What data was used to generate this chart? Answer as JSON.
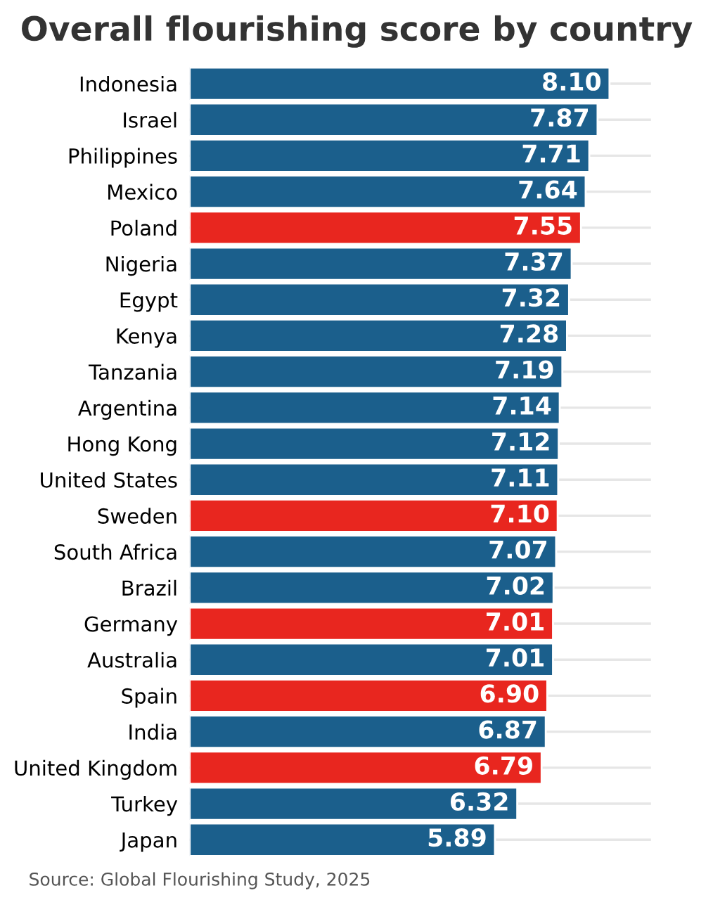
{
  "chart_data": {
    "type": "bar",
    "orientation": "horizontal",
    "title": "Overall flourishing score by country",
    "categories": [
      "Indonesia",
      "Israel",
      "Philippines",
      "Mexico",
      "Poland",
      "Nigeria",
      "Egypt",
      "Kenya",
      "Tanzania",
      "Argentina",
      "Hong Kong",
      "United States",
      "Sweden",
      "South Africa",
      "Brazil",
      "Germany",
      "Australia",
      "Spain",
      "India",
      "United Kingdom",
      "Turkey",
      "Japan"
    ],
    "values": [
      8.1,
      7.87,
      7.71,
      7.64,
      7.55,
      7.37,
      7.32,
      7.28,
      7.19,
      7.14,
      7.12,
      7.11,
      7.1,
      7.07,
      7.02,
      7.01,
      7.01,
      6.9,
      6.87,
      6.79,
      6.32,
      5.89
    ],
    "value_labels": [
      "8.10",
      "7.87",
      "7.71",
      "7.64",
      "7.55",
      "7.37",
      "7.32",
      "7.28",
      "7.19",
      "7.14",
      "7.12",
      "7.11",
      "7.10",
      "7.07",
      "7.02",
      "7.01",
      "7.01",
      "6.90",
      "6.87",
      "6.79",
      "6.32",
      "5.89"
    ],
    "colors": [
      "#1b5f8c",
      "#1b5f8c",
      "#1b5f8c",
      "#1b5f8c",
      "#e8261f",
      "#1b5f8c",
      "#1b5f8c",
      "#1b5f8c",
      "#1b5f8c",
      "#1b5f8c",
      "#1b5f8c",
      "#1b5f8c",
      "#e8261f",
      "#1b5f8c",
      "#1b5f8c",
      "#e8261f",
      "#1b5f8c",
      "#e8261f",
      "#1b5f8c",
      "#e8261f",
      "#1b5f8c",
      "#1b5f8c"
    ],
    "xlim": [
      0,
      8.9
    ],
    "grid": "y",
    "tick_labels": "y",
    "annotations": [
      "Source: Global Flourishing Study, 2025"
    ]
  }
}
